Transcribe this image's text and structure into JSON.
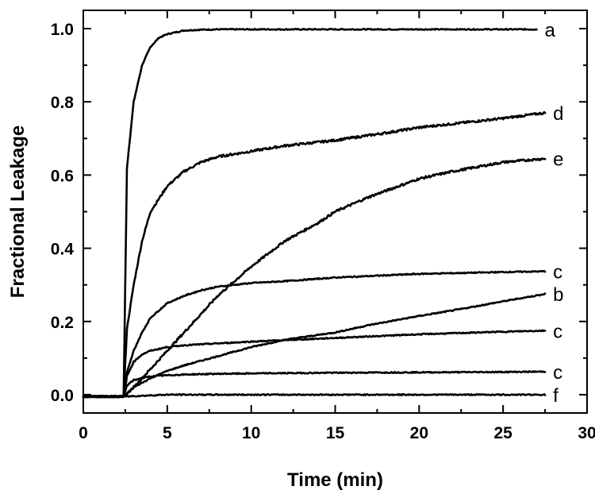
{
  "chart_data": {
    "type": "line",
    "title": "",
    "xlabel": "Time (min)",
    "ylabel": "Fractional Leakage",
    "xlim": [
      0,
      30
    ],
    "ylim": [
      -0.05,
      1.05
    ],
    "xticks": [
      "0",
      "5",
      "10",
      "15",
      "20",
      "25",
      "30"
    ],
    "yticks": [
      "0.0",
      "0.2",
      "0.4",
      "0.6",
      "0.8",
      "1.0"
    ],
    "grid": false,
    "legend": "none",
    "line_color": "#000000",
    "series": [
      {
        "label": "a",
        "x": [
          0,
          2.4,
          2.6,
          3.0,
          3.5,
          4.0,
          4.5,
          5.0,
          5.5,
          6.0,
          7.0,
          8.0,
          10.0,
          15.0,
          20.0,
          27.0
        ],
        "y": [
          -0.005,
          -0.005,
          0.62,
          0.8,
          0.9,
          0.95,
          0.975,
          0.985,
          0.99,
          0.995,
          0.997,
          0.998,
          0.998,
          0.998,
          0.998,
          0.998
        ]
      },
      {
        "label": "d",
        "x": [
          0,
          2.4,
          2.6,
          3.0,
          3.5,
          4.0,
          5.0,
          6.0,
          7.0,
          8.0,
          10.0,
          12.0,
          15.0,
          18.0,
          20.0,
          22.0,
          25.0,
          27.5
        ],
        "y": [
          -0.005,
          -0.005,
          0.18,
          0.3,
          0.42,
          0.5,
          0.57,
          0.61,
          0.635,
          0.65,
          0.665,
          0.68,
          0.695,
          0.715,
          0.73,
          0.74,
          0.755,
          0.77
        ]
      },
      {
        "label": "e",
        "x": [
          0,
          2.4,
          3.0,
          4.0,
          5.0,
          6.0,
          7.0,
          8.0,
          9.0,
          10.0,
          12.0,
          14.0,
          15.0,
          17.0,
          20.0,
          22.0,
          25.0,
          27.5
        ],
        "y": [
          -0.005,
          -0.005,
          0.02,
          0.07,
          0.12,
          0.17,
          0.22,
          0.27,
          0.31,
          0.35,
          0.42,
          0.47,
          0.5,
          0.54,
          0.59,
          0.61,
          0.635,
          0.645
        ]
      },
      {
        "label": "c",
        "x": [
          0,
          2.4,
          2.6,
          3.0,
          3.5,
          4.0,
          5.0,
          6.0,
          7.0,
          8.0,
          10.0,
          12.0,
          15.0,
          20.0,
          25.0,
          27.5
        ],
        "y": [
          -0.005,
          -0.005,
          0.06,
          0.12,
          0.17,
          0.21,
          0.25,
          0.27,
          0.285,
          0.295,
          0.305,
          0.31,
          0.32,
          0.33,
          0.335,
          0.337
        ]
      },
      {
        "label": "b",
        "x": [
          0,
          2.4,
          3.0,
          4.0,
          5.0,
          6.0,
          8.0,
          10.0,
          12.0,
          15.0,
          17.0,
          20.0,
          22.0,
          25.0,
          27.5
        ],
        "y": [
          -0.005,
          -0.005,
          0.02,
          0.045,
          0.065,
          0.08,
          0.105,
          0.13,
          0.15,
          0.17,
          0.19,
          0.215,
          0.23,
          0.255,
          0.275
        ]
      },
      {
        "label": "c",
        "x": [
          0,
          2.4,
          2.6,
          3.0,
          3.5,
          4.0,
          5.0,
          6.0,
          8.0,
          10.0,
          15.0,
          20.0,
          25.0,
          27.5
        ],
        "y": [
          -0.005,
          -0.005,
          0.05,
          0.09,
          0.11,
          0.12,
          0.13,
          0.135,
          0.14,
          0.145,
          0.155,
          0.165,
          0.172,
          0.175
        ]
      },
      {
        "label": "c",
        "x": [
          0,
          2.4,
          2.6,
          3.0,
          3.5,
          4.0,
          5.0,
          6.0,
          8.0,
          10.0,
          15.0,
          20.0,
          25.0,
          27.5
        ],
        "y": [
          -0.005,
          -0.005,
          0.025,
          0.04,
          0.045,
          0.05,
          0.053,
          0.055,
          0.057,
          0.058,
          0.06,
          0.061,
          0.062,
          0.063
        ]
      },
      {
        "label": "f",
        "x": [
          0,
          2.4,
          5.0,
          10.0,
          15.0,
          20.0,
          25.0,
          27.5
        ],
        "y": [
          -0.005,
          -0.005,
          0.0,
          0.0,
          0.0,
          0.0,
          0.0,
          0.0
        ]
      }
    ]
  }
}
